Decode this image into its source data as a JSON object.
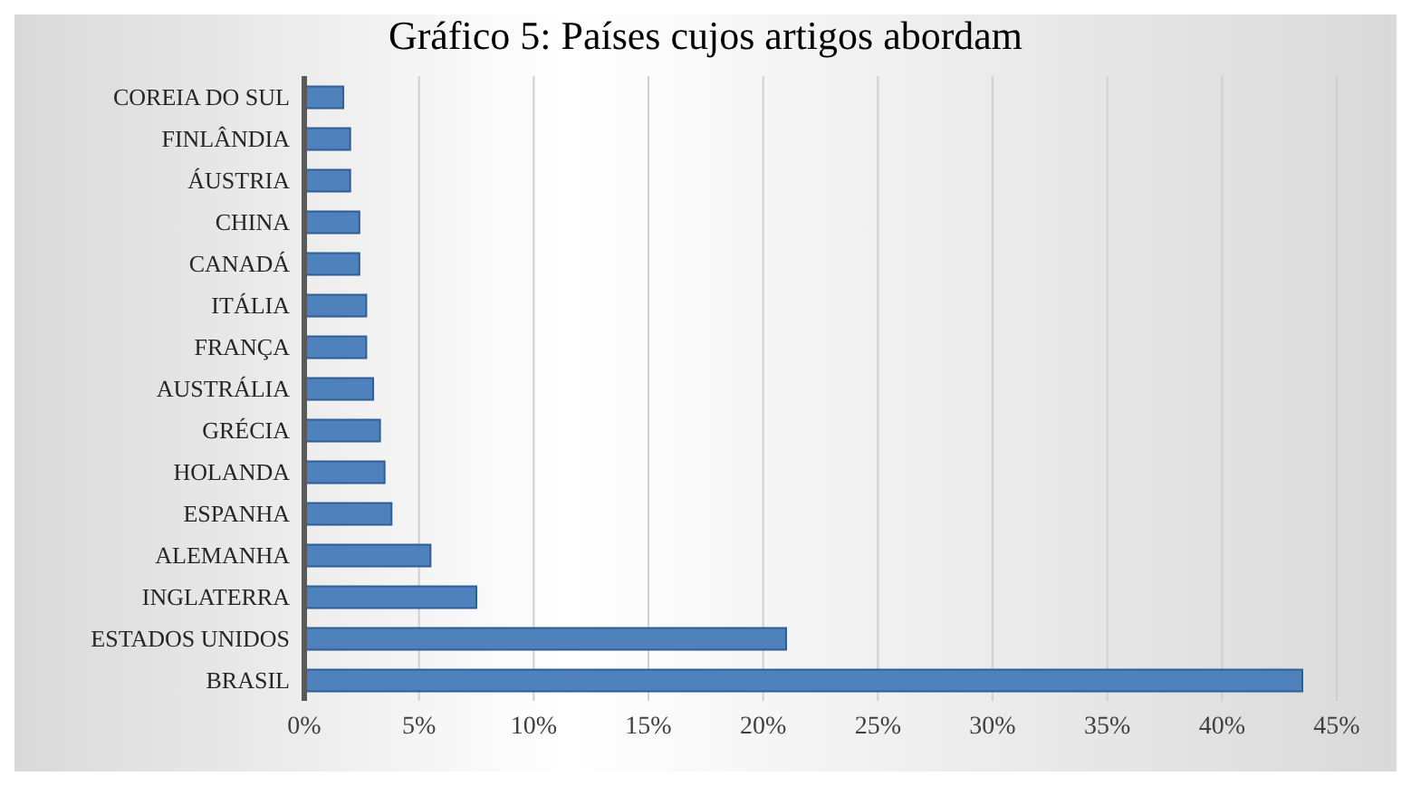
{
  "chart_data": {
    "type": "bar",
    "orientation": "horizontal",
    "title": "Gráfico 5: Países cujos artigos abordam",
    "categories": [
      "COREIA DO SUL",
      "FINLÂNDIA",
      "ÁUSTRIA",
      "CHINA",
      "CANADÁ",
      "ITÁLIA",
      "FRANÇA",
      "AUSTRÁLIA",
      "GRÉCIA",
      "HOLANDA",
      "ESPANHA",
      "ALEMANHA",
      "INGLATERRA",
      "ESTADOS UNIDOS",
      "BRASIL"
    ],
    "values": [
      1.7,
      2,
      2,
      2.4,
      2.4,
      2.7,
      2.7,
      3,
      3.3,
      3.5,
      3.8,
      5.5,
      7.5,
      21,
      43.5
    ],
    "color": "#4f81bd",
    "xlim": [
      0,
      45
    ],
    "xticks": [
      {
        "value": 0,
        "label": "0%"
      },
      {
        "value": 5,
        "label": "5%"
      },
      {
        "value": 10,
        "label": "10%"
      },
      {
        "value": 15,
        "label": "15%"
      },
      {
        "value": 20,
        "label": "20%"
      },
      {
        "value": 25,
        "label": "25%"
      },
      {
        "value": 30,
        "label": "30%"
      },
      {
        "value": 35,
        "label": "35%"
      },
      {
        "value": 40,
        "label": "40%"
      },
      {
        "value": 45,
        "label": "45%"
      }
    ],
    "grid": "x"
  }
}
